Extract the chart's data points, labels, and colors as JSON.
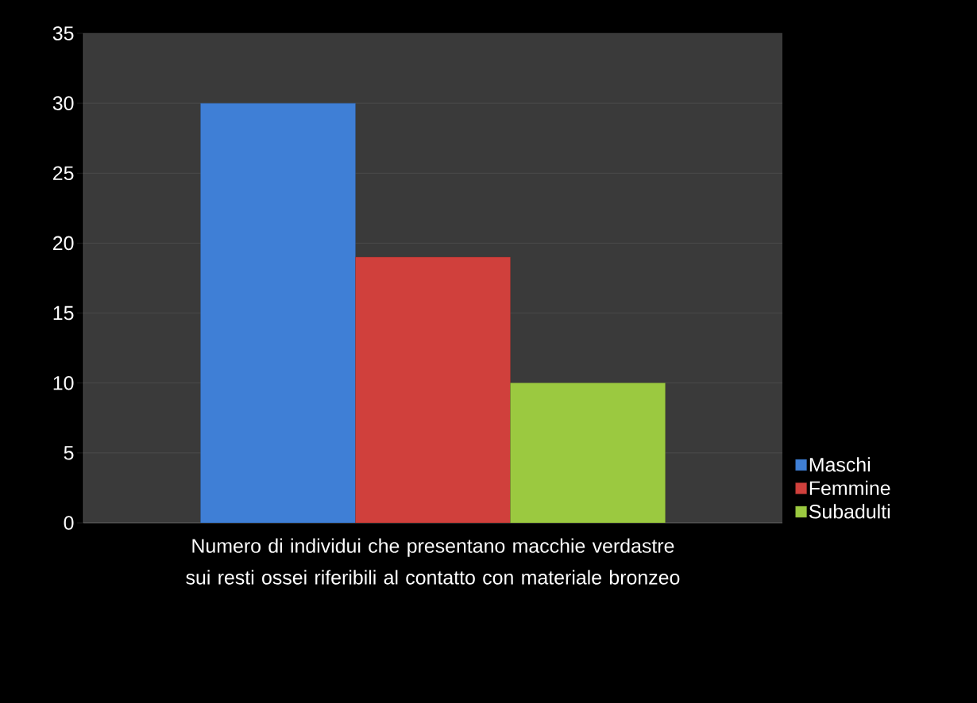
{
  "chart_data": {
    "type": "bar",
    "categories": [
      "Numero di individui che presentano macchie verdastre sui resti ossei riferibili al contatto con materiale bronzeo"
    ],
    "series": [
      {
        "name": "Maschi",
        "color": "#3f7fd6",
        "values": [
          30
        ]
      },
      {
        "name": "Femmine",
        "color": "#d0403c",
        "values": [
          19
        ]
      },
      {
        "name": "Subadulti",
        "color": "#9bc940",
        "values": [
          10
        ]
      }
    ],
    "ylim": [
      0,
      35
    ],
    "yticks": [
      0,
      5,
      10,
      15,
      20,
      25,
      30,
      35
    ],
    "grid": "y",
    "legend": "right"
  }
}
